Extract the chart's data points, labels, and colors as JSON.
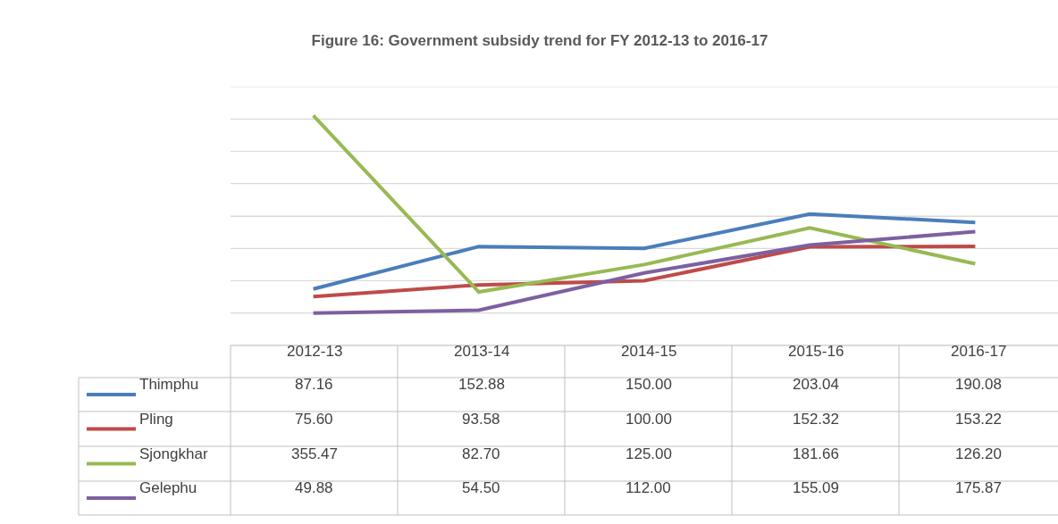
{
  "chart_data": {
    "type": "line",
    "title": "Figure 16: Government subsidy trend for FY 2012-13 to 2016-17",
    "categories": [
      "2012-13",
      "2013-14",
      "2014-15",
      "2015-16",
      "2016-17"
    ],
    "series": [
      {
        "name": "Thimphu",
        "color": "#4a7ebb",
        "values": [
          87.16,
          152.88,
          150.0,
          203.04,
          190.08
        ],
        "value_labels": [
          "87.16",
          "152.88",
          "150.00",
          "203.04",
          "190.08"
        ]
      },
      {
        "name": "Pling",
        "color": "#be4b48",
        "values": [
          75.6,
          93.58,
          100.0,
          152.32,
          153.22
        ],
        "value_labels": [
          "75.60",
          "93.58",
          "100.00",
          "152.32",
          "153.22"
        ]
      },
      {
        "name": "Sjongkhar",
        "color": "#98b954",
        "values": [
          355.47,
          82.7,
          125.0,
          181.66,
          126.2
        ],
        "value_labels": [
          "355.47",
          "82.70",
          "125.00",
          "181.66",
          "126.20"
        ]
      },
      {
        "name": "Gelephu",
        "color": "#7d60a0",
        "values": [
          49.88,
          54.5,
          112.0,
          155.09,
          175.87
        ],
        "value_labels": [
          "49.88",
          "54.50",
          "112.00",
          "155.09",
          "175.87"
        ]
      }
    ],
    "ylim": [
      0,
      400
    ],
    "yticks": [
      {
        "value": 0,
        "label": null
      },
      {
        "value": 50,
        "label": null
      },
      {
        "value": 100,
        "label": null
      },
      {
        "value": 150,
        "label": null
      },
      {
        "value": 200,
        "label": null
      },
      {
        "value": 250,
        "label": null
      },
      {
        "value": 300,
        "label": null
      },
      {
        "value": 350,
        "label": null
      },
      {
        "value": 400,
        "label": null
      }
    ],
    "grid": "y",
    "legend": "bottom left",
    "marker": "none",
    "line_style": "solid",
    "tick_labels": "x"
  }
}
